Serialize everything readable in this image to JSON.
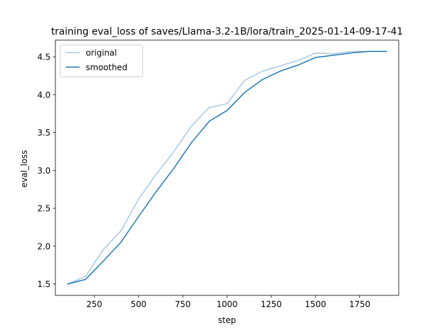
{
  "chart_data": {
    "type": "line",
    "title": "training eval_loss of saves/Llama-3.2-1B/lora/train_2025-01-14-09-17-41",
    "xlabel": "step",
    "ylabel": "eval_loss",
    "xlim": [
      30,
      1970
    ],
    "ylim": [
      1.35,
      4.72
    ],
    "xticks": [
      250,
      500,
      750,
      1000,
      1250,
      1500,
      1750
    ],
    "xtick_labels": [
      "250",
      "500",
      "750",
      "1000",
      "1250",
      "1500",
      "1750"
    ],
    "yticks": [
      1.5,
      2.0,
      2.5,
      3.0,
      3.5,
      4.0,
      4.5
    ],
    "ytick_labels": [
      "1.5",
      "2.0",
      "2.5",
      "3.0",
      "3.5",
      "4.0",
      "4.5"
    ],
    "grid": false,
    "legend_position": "top-left",
    "x": [
      100,
      200,
      300,
      400,
      500,
      600,
      700,
      800,
      900,
      1000,
      1100,
      1200,
      1300,
      1400,
      1500,
      1600,
      1700,
      1800,
      1900
    ],
    "series": [
      {
        "name": "original",
        "color": "#a6c9e2",
        "values": [
          1.5,
          1.6,
          1.95,
          2.2,
          2.62,
          2.95,
          3.25,
          3.59,
          3.83,
          3.88,
          4.19,
          4.31,
          4.38,
          4.45,
          4.55,
          4.54,
          4.57,
          4.57,
          4.57
        ]
      },
      {
        "name": "smoothed",
        "color": "#1f77b4",
        "values": [
          1.5,
          1.56,
          1.8,
          2.05,
          2.39,
          2.72,
          3.03,
          3.37,
          3.65,
          3.79,
          4.03,
          4.2,
          4.31,
          4.39,
          4.49,
          4.52,
          4.55,
          4.57,
          4.57
        ]
      }
    ]
  }
}
